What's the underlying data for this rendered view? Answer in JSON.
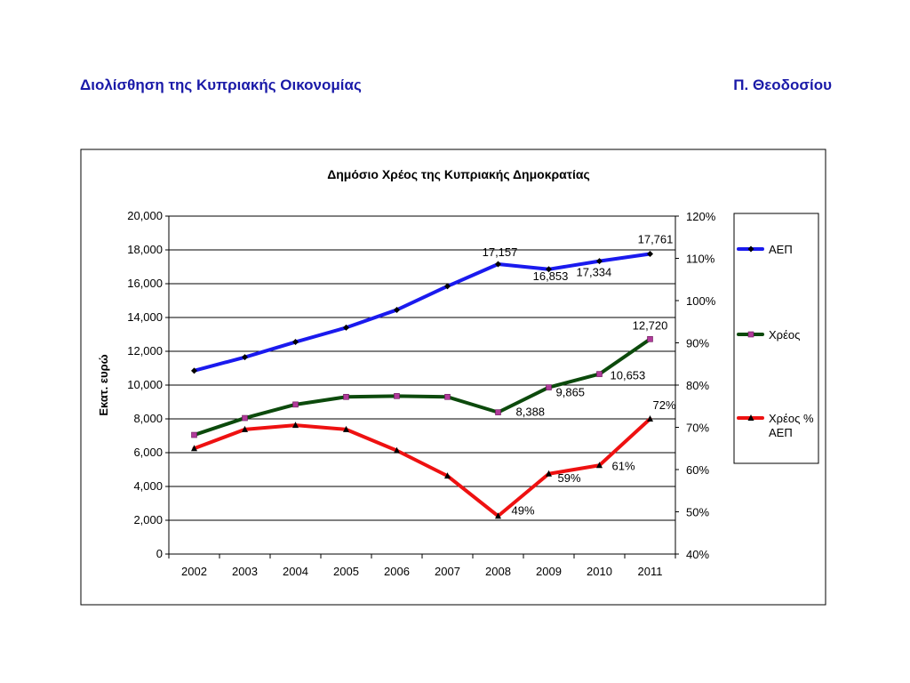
{
  "header": {
    "left_title": "Διολίσθηση της Κυπριακής Οικονομίας",
    "right_title": "Π. Θεοδοσίου"
  },
  "chart_data": {
    "type": "line",
    "title": "Δημόσιο Χρέος της Κυπριακής Δημοκρατίας",
    "ylabel": "Εκατ. ευρώ",
    "ylim": [
      0,
      20000
    ],
    "y2lim": [
      40,
      120
    ],
    "grid": true,
    "legend_position": "right",
    "categories": [
      "2002",
      "2003",
      "2004",
      "2005",
      "2006",
      "2007",
      "2008",
      "2009",
      "2010",
      "2011"
    ],
    "y_ticks": [
      "0",
      "2,000",
      "4,000",
      "6,000",
      "8,000",
      "10,000",
      "12,000",
      "14,000",
      "16,000",
      "18,000",
      "20,000"
    ],
    "y2_ticks": [
      "40%",
      "50%",
      "60%",
      "70%",
      "80%",
      "90%",
      "100%",
      "110%",
      "120%"
    ],
    "series": [
      {
        "name": "ΑΕΠ",
        "axis": "left",
        "color": "#1a1aee",
        "marker": "diamond",
        "values": [
          10850,
          11650,
          12550,
          13400,
          14450,
          15850,
          17157,
          16853,
          17334,
          17761
        ],
        "labels": [
          "",
          "",
          "",
          "",
          "",
          "",
          "17,157",
          "16,853",
          "17,334",
          "17,761"
        ]
      },
      {
        "name": "Χρέος",
        "axis": "left",
        "color": "#0c4a0c",
        "marker": "square",
        "values": [
          7050,
          8050,
          8850,
          9300,
          9350,
          9300,
          8388,
          9865,
          10653,
          12720
        ],
        "labels": [
          "",
          "",
          "",
          "",
          "",
          "",
          "8,388",
          "9,865",
          "10,653",
          "12,720"
        ]
      },
      {
        "name": "Χρέος % ΑΕΠ",
        "axis": "right",
        "color": "#ee1111",
        "marker": "triangle",
        "values": [
          65,
          69.5,
          70.5,
          69.5,
          64.5,
          58.5,
          49,
          59,
          61,
          72
        ],
        "labels": [
          "",
          "",
          "",
          "",
          "",
          "",
          "49%",
          "59%",
          "61%",
          "72%"
        ]
      }
    ]
  }
}
